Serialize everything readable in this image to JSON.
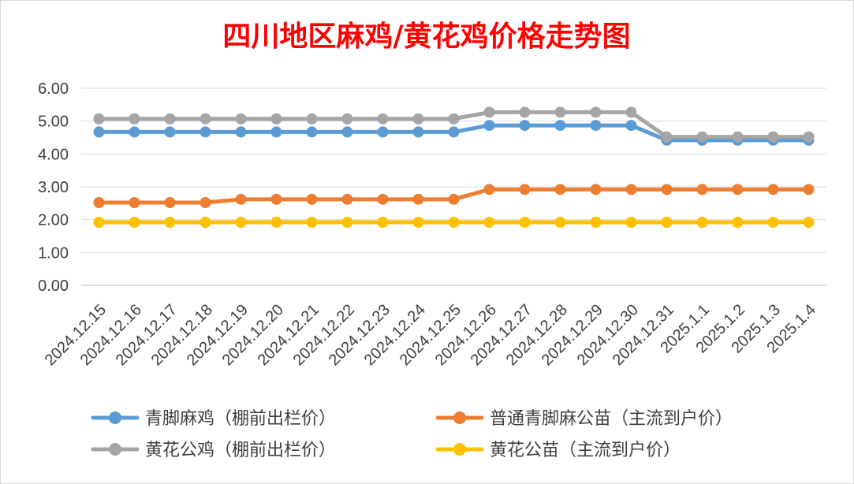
{
  "chart_data": {
    "type": "line",
    "title": "四川地区麻鸡/黄花鸡价格走势图",
    "title_color": "#ff0000",
    "xlabel": "",
    "ylabel": "",
    "ylim": [
      0,
      6
    ],
    "yticks": [
      "0.00",
      "1.00",
      "2.00",
      "3.00",
      "4.00",
      "5.00",
      "6.00"
    ],
    "grid": true,
    "legend_position": "bottom",
    "categories": [
      "2024.12.15",
      "2024.12.16",
      "2024.12.17",
      "2024.12.18",
      "2024.12.19",
      "2024.12.20",
      "2024.12.21",
      "2024.12.22",
      "2024.12.23",
      "2024.12.24",
      "2024.12.25",
      "2024.12.26",
      "2024.12.27",
      "2024.12.28",
      "2024.12.29",
      "2024.12.30",
      "2024.12.31",
      "2025.1.1",
      "2025.1.2",
      "2025.1.3",
      "2025.1.4"
    ],
    "series": [
      {
        "name": "青脚麻鸡（棚前出栏价）",
        "color": "#5b9bd5",
        "values": [
          4.67,
          4.67,
          4.67,
          4.67,
          4.67,
          4.67,
          4.67,
          4.67,
          4.67,
          4.67,
          4.67,
          4.87,
          4.87,
          4.87,
          4.87,
          4.87,
          4.42,
          4.42,
          4.42,
          4.42,
          4.42
        ]
      },
      {
        "name": "普通青脚麻公苗（主流到户价）",
        "color": "#ed7d31",
        "values": [
          2.52,
          2.52,
          2.52,
          2.52,
          2.62,
          2.62,
          2.62,
          2.62,
          2.62,
          2.62,
          2.62,
          2.92,
          2.92,
          2.92,
          2.92,
          2.92,
          2.92,
          2.92,
          2.92,
          2.92,
          2.92
        ]
      },
      {
        "name": "黄花公鸡（棚前出栏价）",
        "color": "#a5a5a5",
        "values": [
          5.07,
          5.07,
          5.07,
          5.07,
          5.07,
          5.07,
          5.07,
          5.07,
          5.07,
          5.07,
          5.07,
          5.27,
          5.27,
          5.27,
          5.27,
          5.27,
          4.52,
          4.52,
          4.52,
          4.52,
          4.52
        ]
      },
      {
        "name": "黄花公苗（主流到户价）",
        "color": "#ffc000",
        "values": [
          1.92,
          1.92,
          1.92,
          1.92,
          1.92,
          1.92,
          1.92,
          1.92,
          1.92,
          1.92,
          1.92,
          1.92,
          1.92,
          1.92,
          1.92,
          1.92,
          1.92,
          1.92,
          1.92,
          1.92,
          1.92
        ]
      }
    ],
    "legend_order": [
      0,
      1,
      2,
      3
    ]
  }
}
